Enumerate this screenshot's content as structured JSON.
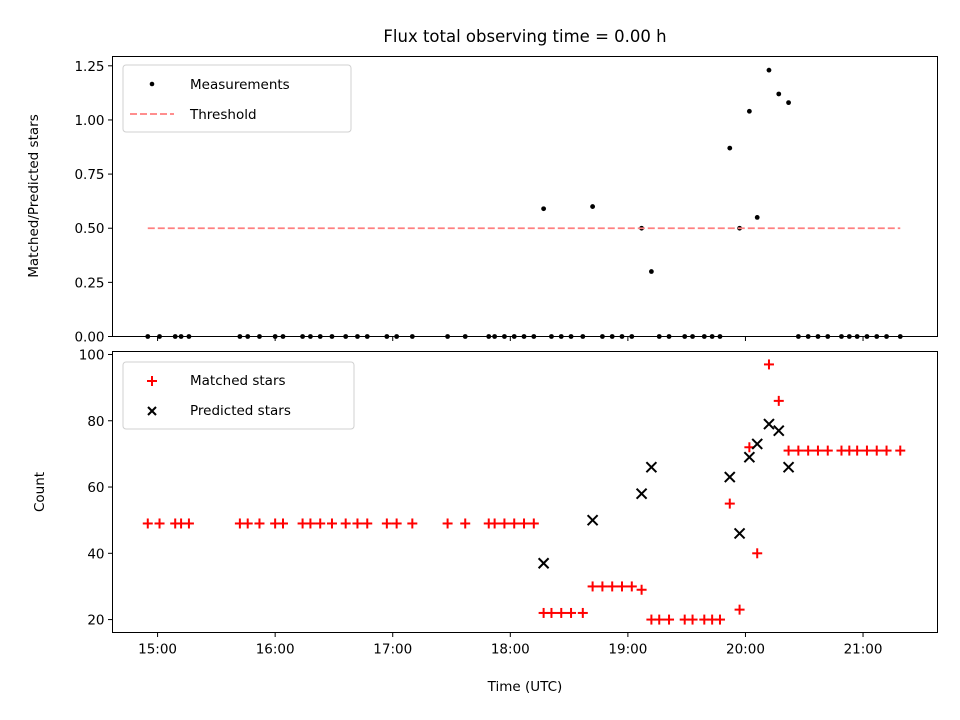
{
  "chart_data": [
    {
      "type": "scatter",
      "title": "Flux total observing time = 0.00 h",
      "xlabel": "",
      "ylabel": "Matched/Predicted stars",
      "ylim": [
        0,
        1.293
      ],
      "xlim": [
        "14:37",
        "21:38"
      ],
      "yticks": [
        0.0,
        0.25,
        0.5,
        0.75,
        1.0,
        1.25
      ],
      "ytick_labels": [
        "0.00",
        "0.25",
        "0.50",
        "0.75",
        "1.00",
        "1.25"
      ],
      "xticks": [
        "15:00",
        "16:00",
        "17:00",
        "18:00",
        "19:00",
        "20:00",
        "21:00"
      ],
      "grid": false,
      "legend": {
        "placement": "top-left",
        "entries": [
          "Measurements",
          "Threshold"
        ]
      },
      "series": [
        {
          "name": "Measurements",
          "marker": "dot",
          "color": "#000000",
          "x": [
            "14:55",
            "15:01",
            "15:09",
            "15:12",
            "15:16",
            "15:42",
            "15:46",
            "15:52",
            "16:00",
            "16:04",
            "16:14",
            "16:18",
            "16:23",
            "16:29",
            "16:36",
            "16:42",
            "16:47",
            "16:57",
            "17:02",
            "17:10",
            "17:28",
            "17:37",
            "17:49",
            "17:52",
            "17:57",
            "18:02",
            "18:07",
            "18:12",
            "18:17",
            "18:21",
            "18:26",
            "18:31",
            "18:37",
            "18:42",
            "18:47",
            "18:52",
            "18:57",
            "19:02",
            "19:07",
            "19:12",
            "19:16",
            "19:21",
            "19:29",
            "19:33",
            "19:39",
            "19:43",
            "19:47",
            "19:52",
            "19:57",
            "20:02",
            "20:06",
            "20:12",
            "20:17",
            "20:22",
            "20:27",
            "20:32",
            "20:37",
            "20:42",
            "20:49",
            "20:53",
            "20:57",
            "21:02",
            "21:07",
            "21:12",
            "21:19"
          ],
          "y": [
            0,
            0,
            0,
            0,
            0,
            0,
            0,
            0,
            0,
            0,
            0,
            0,
            0,
            0,
            0,
            0,
            0,
            0,
            0,
            0,
            0,
            0,
            0,
            0,
            0,
            0,
            0,
            0,
            0.59,
            0,
            0,
            0,
            0,
            0.6,
            0,
            0,
            0,
            0,
            0.5,
            0.3,
            0,
            0,
            0,
            0,
            0,
            0,
            0,
            0.87,
            0.5,
            1.04,
            0.55,
            1.23,
            1.12,
            1.08,
            0,
            0,
            0,
            0,
            0,
            0,
            0,
            0,
            0,
            0,
            0
          ]
        },
        {
          "name": "Threshold",
          "style": "dashed",
          "color": "#ff7f7f",
          "x": [
            "14:55",
            "21:19"
          ],
          "y": [
            0.5,
            0.5
          ]
        }
      ]
    },
    {
      "type": "scatter",
      "title": "",
      "xlabel": "Time (UTC)",
      "ylabel": "Count",
      "ylim": [
        16.1,
        100.9
      ],
      "xlim": [
        "14:37",
        "21:38"
      ],
      "yticks": [
        20,
        40,
        60,
        80,
        100
      ],
      "ytick_labels": [
        "20",
        "40",
        "60",
        "80",
        "100"
      ],
      "xticks": [
        "15:00",
        "16:00",
        "17:00",
        "18:00",
        "19:00",
        "20:00",
        "21:00"
      ],
      "grid": false,
      "legend": {
        "placement": "top-left",
        "entries": [
          "Matched stars",
          "Predicted stars"
        ]
      },
      "series": [
        {
          "name": "Matched stars",
          "marker": "plus",
          "color": "#ff0000",
          "x": [
            "14:55",
            "15:01",
            "15:09",
            "15:12",
            "15:16",
            "15:42",
            "15:46",
            "15:52",
            "16:00",
            "16:04",
            "16:14",
            "16:18",
            "16:23",
            "16:29",
            "16:36",
            "16:42",
            "16:47",
            "16:57",
            "17:02",
            "17:10",
            "17:28",
            "17:37",
            "17:49",
            "17:52",
            "17:57",
            "18:02",
            "18:07",
            "18:12",
            "18:17",
            "18:21",
            "18:26",
            "18:31",
            "18:37",
            "18:42",
            "18:47",
            "18:52",
            "18:57",
            "19:02",
            "19:07",
            "19:12",
            "19:16",
            "19:21",
            "19:29",
            "19:33",
            "19:39",
            "19:43",
            "19:47",
            "19:52",
            "19:57",
            "20:02",
            "20:06",
            "20:12",
            "20:17",
            "20:22",
            "20:27",
            "20:32",
            "20:37",
            "20:42",
            "20:49",
            "20:53",
            "20:57",
            "21:02",
            "21:07",
            "21:12",
            "21:19"
          ],
          "y": [
            49,
            49,
            49,
            49,
            49,
            49,
            49,
            49,
            49,
            49,
            49,
            49,
            49,
            49,
            49,
            49,
            49,
            49,
            49,
            49,
            49,
            49,
            49,
            49,
            49,
            49,
            49,
            49,
            22,
            22,
            22,
            22,
            22,
            30,
            30,
            30,
            30,
            30,
            29,
            20,
            20,
            20,
            20,
            20,
            20,
            20,
            20,
            55,
            23,
            72,
            40,
            97,
            86,
            71,
            71,
            71,
            71,
            71,
            71,
            71,
            71,
            71,
            71,
            71,
            71
          ]
        },
        {
          "name": "Predicted stars",
          "marker": "x",
          "color": "#000000",
          "x": [
            "18:17",
            "18:42",
            "19:07",
            "19:12",
            "19:52",
            "19:57",
            "20:02",
            "20:06",
            "20:12",
            "20:17",
            "20:22"
          ],
          "y": [
            37,
            50,
            58,
            66,
            63,
            46,
            69,
            73,
            79,
            77,
            66
          ]
        }
      ]
    }
  ]
}
